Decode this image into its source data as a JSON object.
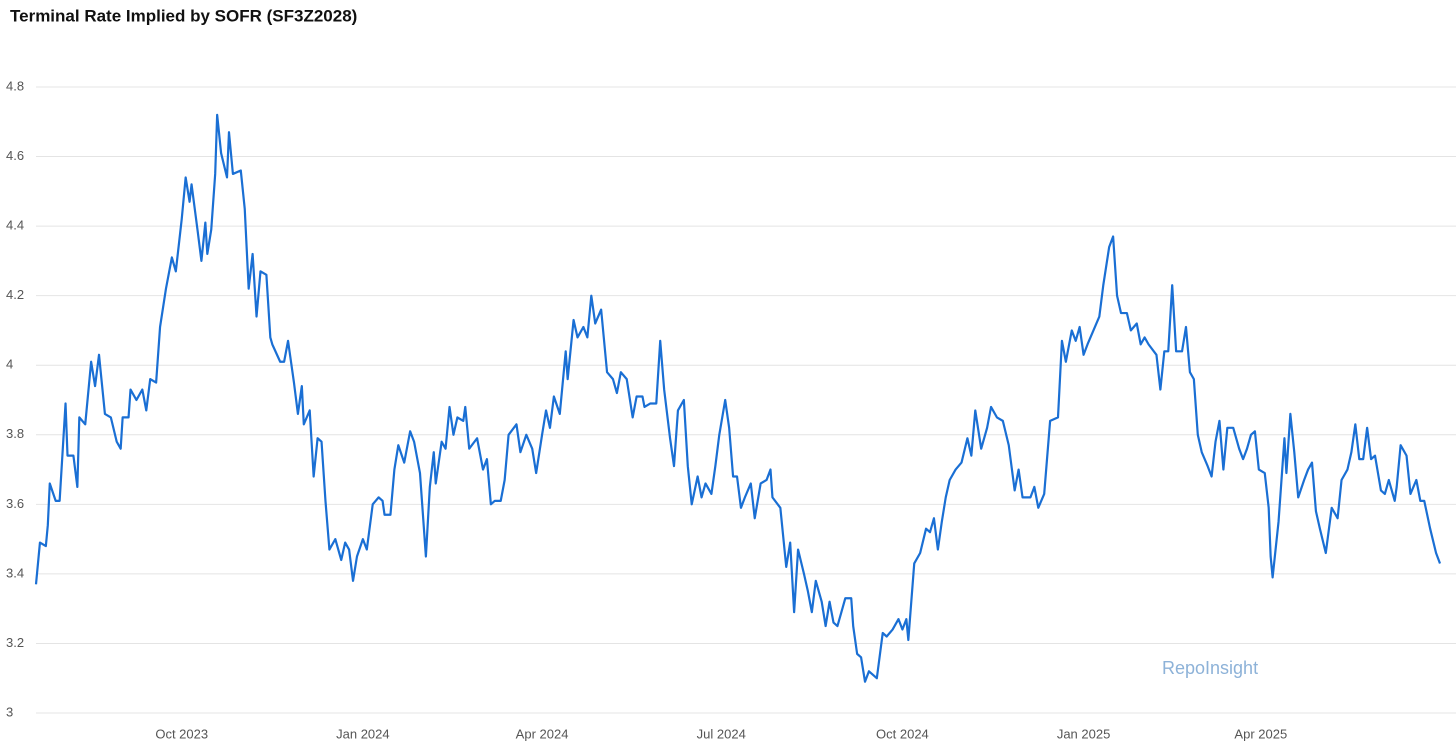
{
  "chart_data": {
    "type": "line",
    "title": "Terminal Rate Implied by SOFR (SF3Z2028)",
    "watermark": "RepoInsight",
    "grid": true,
    "xlim": [
      0,
      713
    ],
    "xticks": [
      {
        "value": 74,
        "label": "Oct 2023"
      },
      {
        "value": 166,
        "label": "Jan 2024"
      },
      {
        "value": 257,
        "label": "Apr 2024"
      },
      {
        "value": 348,
        "label": "Jul 2024"
      },
      {
        "value": 440,
        "label": "Oct 2024"
      },
      {
        "value": 532,
        "label": "Jan 2025"
      },
      {
        "value": 622,
        "label": "Apr 2025"
      }
    ],
    "ylim": [
      3,
      4.8
    ],
    "yticks": [
      3,
      3.2,
      3.4,
      3.6,
      3.8,
      4,
      4.2,
      4.4,
      4.6,
      4.8
    ],
    "x": [
      0,
      2,
      5,
      6,
      7,
      10,
      12,
      15,
      16,
      19,
      21,
      22,
      25,
      28,
      30,
      32,
      35,
      38,
      41,
      43,
      44,
      47,
      48,
      51,
      54,
      56,
      58,
      61,
      63,
      66,
      69,
      71,
      74,
      76,
      78,
      79,
      82,
      84,
      86,
      87,
      89,
      91,
      92,
      94,
      97,
      98,
      100,
      104,
      106,
      108,
      110,
      112,
      114,
      117,
      119,
      120,
      124,
      126,
      128,
      131,
      133,
      135,
      136,
      139,
      141,
      143,
      145,
      147,
      149,
      152,
      155,
      157,
      159,
      161,
      163,
      166,
      168,
      171,
      174,
      176,
      177,
      180,
      182,
      184,
      187,
      190,
      192,
      195,
      198,
      200,
      202,
      203,
      206,
      208,
      210,
      212,
      214,
      217,
      218,
      220,
      224,
      227,
      229,
      231,
      233,
      236,
      238,
      240,
      244,
      246,
      249,
      252,
      254,
      257,
      259,
      261,
      263,
      266,
      269,
      270,
      273,
      275,
      278,
      280,
      282,
      284,
      287,
      290,
      293,
      295,
      297,
      300,
      303,
      305,
      308,
      309,
      312,
      315,
      317,
      319,
      322,
      324,
      326,
      329,
      331,
      333,
      336,
      338,
      340,
      343,
      345,
      347,
      350,
      352,
      354,
      356,
      358,
      360,
      363,
      365,
      368,
      371,
      373,
      374,
      378,
      381,
      383,
      385,
      387,
      390,
      392,
      394,
      396,
      399,
      401,
      403,
      405,
      407,
      409,
      411,
      414,
      415,
      417,
      419,
      421,
      423,
      427,
      430,
      432,
      435,
      438,
      440,
      442,
      443,
      446,
      449,
      452,
      454,
      456,
      458,
      460,
      462,
      464,
      467,
      470,
      473,
      475,
      477,
      480,
      483,
      485,
      488,
      491,
      494,
      497,
      499,
      501,
      505,
      507,
      509,
      512,
      515,
      519,
      521,
      523,
      526,
      528,
      530,
      532,
      534,
      537,
      540,
      542,
      545,
      547,
      549,
      551,
      554,
      556,
      559,
      561,
      563,
      565,
      569,
      571,
      573,
      575,
      577,
      579,
      582,
      584,
      586,
      588,
      590,
      592,
      595,
      597,
      599,
      601,
      603,
      605,
      608,
      611,
      613,
      615,
      617,
      619,
      621,
      624,
      626,
      627,
      628,
      631,
      634,
      635,
      637,
      639,
      641,
      644,
      646,
      648,
      650,
      652,
      655,
      658,
      661,
      663,
      666,
      668,
      670,
      672,
      674,
      676,
      678,
      680,
      683,
      685,
      687,
      690,
      691,
      693,
      696,
      698,
      701,
      703,
      705,
      708,
      711,
      713
    ],
    "series": [
      {
        "name": "SF3Z2028",
        "color": "#1a6fd4",
        "values": [
          3.37,
          3.49,
          3.48,
          3.54,
          3.66,
          3.61,
          3.61,
          3.89,
          3.74,
          3.74,
          3.65,
          3.85,
          3.83,
          4.01,
          3.94,
          4.03,
          3.86,
          3.85,
          3.78,
          3.76,
          3.85,
          3.85,
          3.93,
          3.9,
          3.93,
          3.87,
          3.96,
          3.95,
          4.11,
          4.22,
          4.31,
          4.27,
          4.42,
          4.54,
          4.47,
          4.52,
          4.39,
          4.3,
          4.41,
          4.32,
          4.39,
          4.55,
          4.72,
          4.61,
          4.54,
          4.67,
          4.55,
          4.56,
          4.45,
          4.22,
          4.32,
          4.14,
          4.27,
          4.26,
          4.08,
          4.06,
          4.01,
          4.01,
          4.07,
          3.95,
          3.86,
          3.94,
          3.83,
          3.87,
          3.68,
          3.79,
          3.78,
          3.61,
          3.47,
          3.5,
          3.44,
          3.49,
          3.47,
          3.38,
          3.45,
          3.5,
          3.47,
          3.6,
          3.62,
          3.61,
          3.57,
          3.57,
          3.7,
          3.77,
          3.72,
          3.81,
          3.78,
          3.69,
          3.45,
          3.65,
          3.75,
          3.66,
          3.78,
          3.76,
          3.88,
          3.8,
          3.85,
          3.84,
          3.88,
          3.76,
          3.79,
          3.7,
          3.73,
          3.6,
          3.61,
          3.61,
          3.67,
          3.8,
          3.83,
          3.75,
          3.8,
          3.76,
          3.69,
          3.8,
          3.87,
          3.82,
          3.91,
          3.86,
          4.04,
          3.96,
          4.13,
          4.08,
          4.11,
          4.08,
          4.2,
          4.12,
          4.16,
          3.98,
          3.96,
          3.92,
          3.98,
          3.96,
          3.85,
          3.91,
          3.91,
          3.88,
          3.89,
          3.89,
          4.07,
          3.93,
          3.79,
          3.71,
          3.87,
          3.9,
          3.71,
          3.6,
          3.68,
          3.62,
          3.66,
          3.63,
          3.71,
          3.8,
          3.9,
          3.82,
          3.68,
          3.68,
          3.59,
          3.62,
          3.66,
          3.56,
          3.66,
          3.67,
          3.7,
          3.62,
          3.59,
          3.42,
          3.49,
          3.29,
          3.47,
          3.4,
          3.35,
          3.29,
          3.38,
          3.32,
          3.25,
          3.32,
          3.26,
          3.25,
          3.29,
          3.33,
          3.33,
          3.25,
          3.17,
          3.16,
          3.09,
          3.12,
          3.1,
          3.23,
          3.22,
          3.24,
          3.27,
          3.24,
          3.27,
          3.21,
          3.43,
          3.46,
          3.53,
          3.52,
          3.56,
          3.47,
          3.55,
          3.62,
          3.67,
          3.7,
          3.72,
          3.79,
          3.74,
          3.87,
          3.76,
          3.82,
          3.88,
          3.85,
          3.84,
          3.77,
          3.64,
          3.7,
          3.62,
          3.62,
          3.65,
          3.59,
          3.63,
          3.84,
          3.85,
          4.07,
          4.01,
          4.1,
          4.07,
          4.11,
          4.03,
          4.06,
          4.1,
          4.14,
          4.23,
          4.34,
          4.37,
          4.2,
          4.15,
          4.15,
          4.1,
          4.12,
          4.06,
          4.08,
          4.06,
          4.03,
          3.93,
          4.04,
          4.04,
          4.23,
          4.04,
          4.04,
          4.11,
          3.98,
          3.96,
          3.8,
          3.75,
          3.71,
          3.68,
          3.78,
          3.84,
          3.7,
          3.82,
          3.82,
          3.76,
          3.73,
          3.76,
          3.8,
          3.81,
          3.7,
          3.69,
          3.59,
          3.45,
          3.39,
          3.55,
          3.79,
          3.69,
          3.86,
          3.75,
          3.62,
          3.67,
          3.7,
          3.72,
          3.58,
          3.53,
          3.46,
          3.59,
          3.56,
          3.67,
          3.7,
          3.75,
          3.83,
          3.73,
          3.73,
          3.82,
          3.73,
          3.74,
          3.64,
          3.63,
          3.67,
          3.61,
          3.65,
          3.77,
          3.74,
          3.63,
          3.67,
          3.61,
          3.61,
          3.53,
          3.46,
          3.43
        ]
      }
    ]
  }
}
